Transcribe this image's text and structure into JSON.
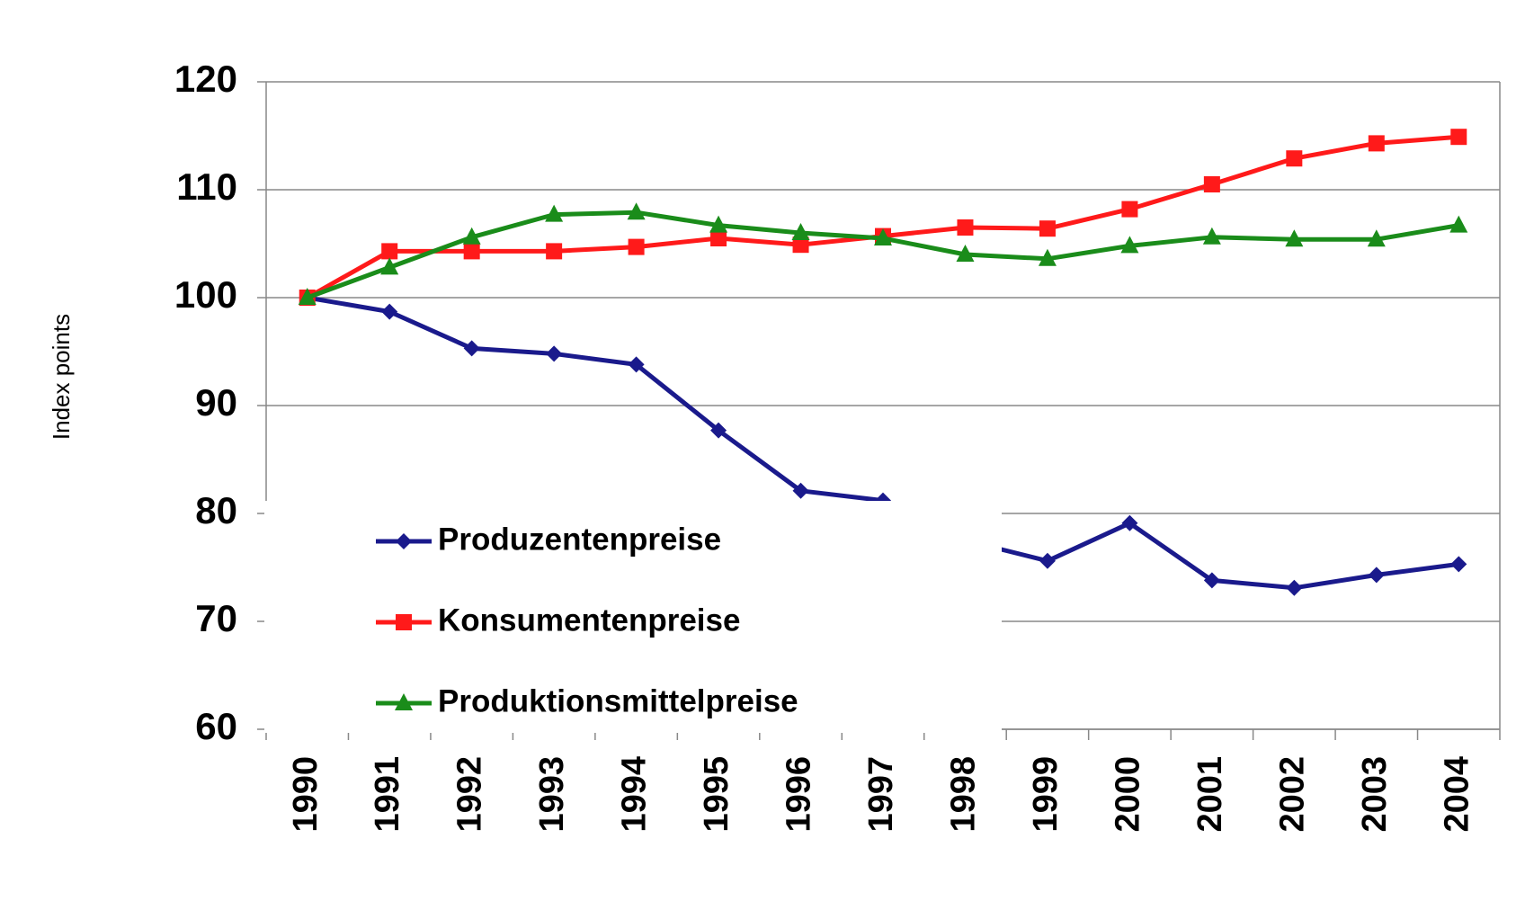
{
  "chart_data": {
    "type": "line",
    "y_label": "Index points",
    "categories": [
      "1990",
      "1991",
      "1992",
      "1993",
      "1994",
      "1995",
      "1996",
      "1997",
      "1998",
      "1999",
      "2000",
      "2001",
      "2002",
      "2003",
      "2004"
    ],
    "series": [
      {
        "name": "Produzentenpreise",
        "color": "#1a1a8c",
        "marker": "diamond",
        "values": [
          100,
          98.7,
          95.3,
          94.8,
          93.8,
          87.7,
          82.1,
          81.2,
          77.5,
          75.6,
          79.1,
          73.8,
          73.1,
          74.3,
          75.3
        ]
      },
      {
        "name": "Konsumentenpreise",
        "color": "#ff1a1a",
        "marker": "square",
        "values": [
          100,
          104.3,
          104.3,
          104.3,
          104.7,
          105.5,
          104.9,
          105.7,
          106.5,
          106.4,
          108.2,
          110.5,
          112.9,
          114.3,
          114.9
        ]
      },
      {
        "name": "Produktionsmittelpreise",
        "color": "#1a8c1a",
        "marker": "triangle",
        "values": [
          100,
          102.8,
          105.6,
          107.7,
          107.9,
          106.7,
          106.0,
          105.5,
          104.0,
          103.6,
          104.8,
          105.6,
          105.4,
          105.4,
          106.7
        ]
      }
    ],
    "ylim": [
      60,
      120
    ],
    "yticks": [
      60,
      70,
      80,
      90,
      100,
      110,
      120
    ],
    "grid": true
  }
}
